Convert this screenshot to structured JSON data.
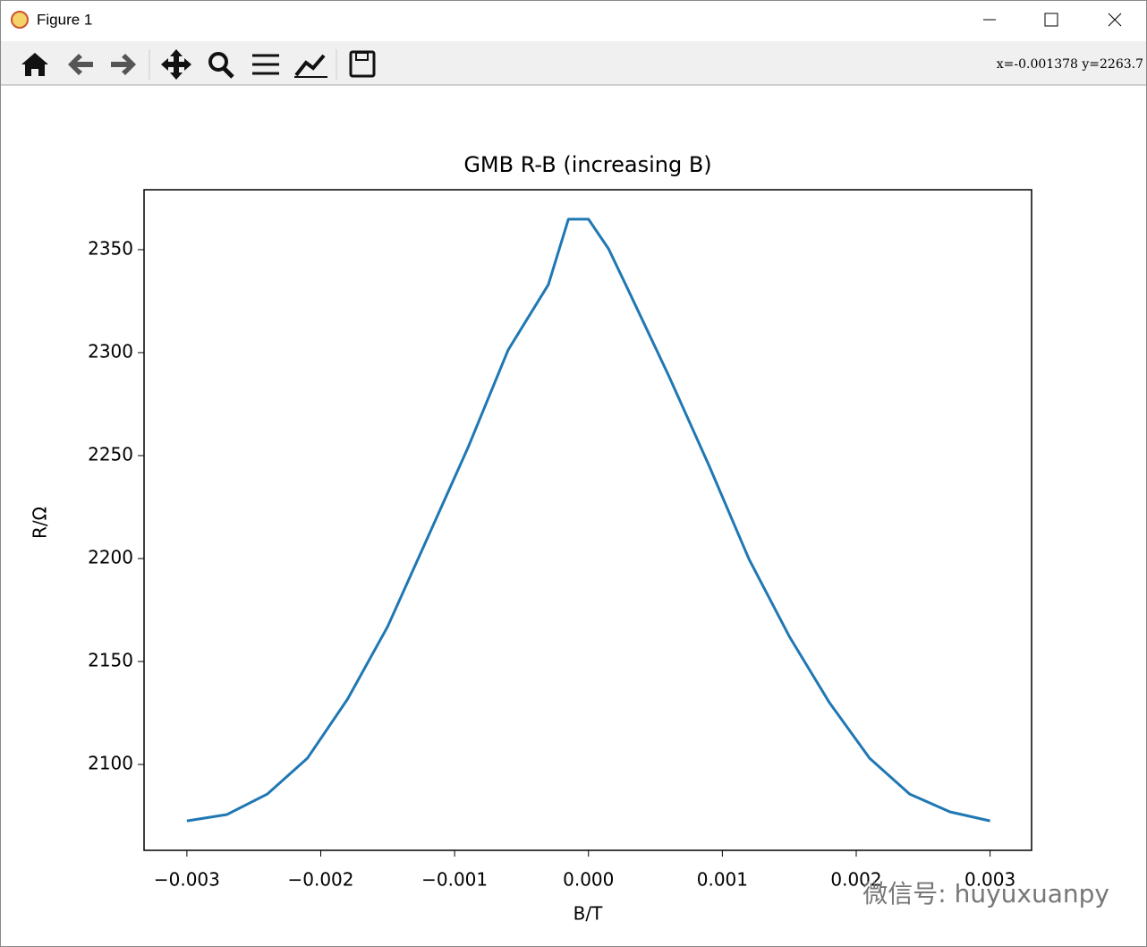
{
  "window": {
    "title": "Figure 1",
    "coordinates": "x=-0.001378 y=2263.7"
  },
  "watermark": "微信号: huyuxuanpy",
  "chart_data": {
    "type": "line",
    "title": "GMB R-B (increasing B)",
    "x_label": "B/T",
    "y_label": "R/Ω",
    "x": [
      -0.003,
      -0.0027,
      -0.0024,
      -0.0021,
      -0.0018,
      -0.0015,
      -0.0012,
      -0.0009,
      -0.0006,
      -0.0003,
      -0.00015,
      0,
      0.00015,
      0.0003,
      0.0006,
      0.0009,
      0.0012,
      0.0015,
      0.0018,
      0.0021,
      0.0024,
      0.0027,
      0.003
    ],
    "values": [
      2072.6,
      2075.7,
      2085.6,
      2103.0,
      2131.7,
      2167.0,
      2210.4,
      2253.9,
      2301.3,
      2333.0,
      2364.8,
      2364.8,
      2350.4,
      2330.0,
      2288.7,
      2245.2,
      2199.6,
      2162.2,
      2130.0,
      2103.0,
      2085.6,
      2077.0,
      2072.6
    ],
    "color": "#1f77b4",
    "xlim": [
      -0.00332,
      0.00331
    ],
    "ylim": [
      2058.3,
      2379.1
    ],
    "xticks": [
      {
        "value": -0.003,
        "label": "−0.003"
      },
      {
        "value": -0.002,
        "label": "−0.002"
      },
      {
        "value": -0.001,
        "label": "−0.001"
      },
      {
        "value": 0,
        "label": "0.000"
      },
      0.001,
      0.002,
      0.003
    ],
    "yticks": [
      2100,
      2150,
      2200,
      2250,
      2300,
      2350
    ]
  }
}
